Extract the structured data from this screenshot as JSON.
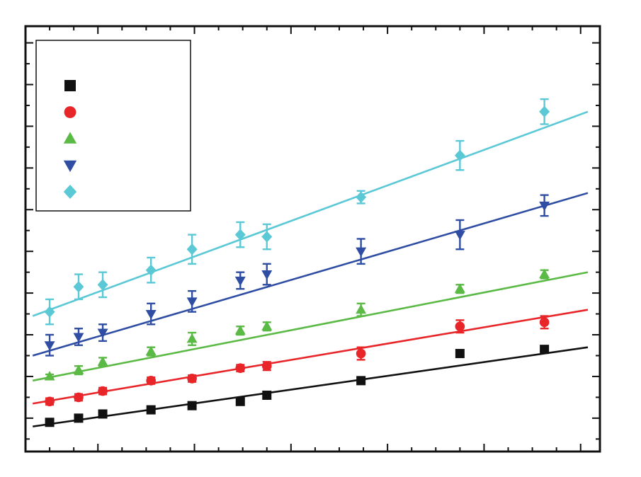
{
  "chart_data": {
    "type": "scatter",
    "title": "",
    "xlabel": "",
    "ylabel": "",
    "xlim": [
      0.5,
      12.4
    ],
    "ylim": [
      0.2,
      10.4
    ],
    "grid": false,
    "legend": {
      "placement": "top-left",
      "entries_labeled": false
    },
    "x": [
      1.0,
      1.6,
      2.1,
      3.1,
      3.95,
      4.95,
      5.5,
      7.45,
      9.5,
      11.25
    ],
    "series": [
      {
        "color": "#111111",
        "marker": "square",
        "x": [
          1.0,
          1.6,
          2.1,
          3.1,
          3.95,
          4.95,
          5.5,
          7.45,
          9.5,
          11.25
        ],
        "y": [
          0.9,
          1.0,
          1.1,
          1.2,
          1.3,
          1.4,
          1.55,
          1.9,
          2.55,
          2.65
        ],
        "err": [
          0.05,
          0.05,
          0.05,
          0.05,
          0.05,
          0.05,
          0.05,
          0.05,
          0.05,
          0.05
        ],
        "fit": [
          [
            0.65,
            0.8
          ],
          [
            12.15,
            2.7
          ]
        ]
      },
      {
        "color": "#e8262a",
        "marker": "circle",
        "x": [
          1.0,
          1.6,
          2.1,
          3.1,
          3.95,
          4.95,
          5.5,
          7.45,
          9.5,
          11.25
        ],
        "y": [
          1.4,
          1.5,
          1.65,
          1.9,
          1.95,
          2.2,
          2.25,
          2.55,
          3.2,
          3.3
        ],
        "err": [
          0.08,
          0.08,
          0.08,
          0.08,
          0.08,
          0.08,
          0.1,
          0.15,
          0.15,
          0.15
        ],
        "fit": [
          [
            0.65,
            1.35
          ],
          [
            12.15,
            3.6
          ]
        ]
      },
      {
        "color": "#5bb945",
        "marker": "triangle-up",
        "x": [
          1.0,
          1.6,
          2.1,
          3.1,
          3.95,
          4.95,
          5.5,
          7.45,
          9.5,
          11.25
        ],
        "y": [
          2.0,
          2.15,
          2.35,
          2.6,
          2.9,
          3.1,
          3.2,
          3.6,
          4.1,
          4.45
        ],
        "err": [
          0.05,
          0.1,
          0.1,
          0.1,
          0.15,
          0.1,
          0.1,
          0.15,
          0.1,
          0.1
        ],
        "fit": [
          [
            0.65,
            1.9
          ],
          [
            12.15,
            4.5
          ]
        ]
      },
      {
        "color": "#2e4da3",
        "marker": "triangle-down",
        "x": [
          1.0,
          1.6,
          2.1,
          3.1,
          3.95,
          4.95,
          5.5,
          7.45,
          9.5,
          11.25
        ],
        "y": [
          2.75,
          2.95,
          3.05,
          3.5,
          3.8,
          4.3,
          4.45,
          5.0,
          5.4,
          6.1
        ],
        "err": [
          0.25,
          0.2,
          0.2,
          0.25,
          0.25,
          0.2,
          0.25,
          0.3,
          0.35,
          0.25
        ],
        "fit": [
          [
            0.65,
            2.5
          ],
          [
            12.15,
            6.4
          ]
        ]
      },
      {
        "color": "#5bc8d6",
        "marker": "diamond",
        "x": [
          1.0,
          1.6,
          2.1,
          3.1,
          3.95,
          4.95,
          5.5,
          7.45,
          9.5,
          11.25
        ],
        "y": [
          3.55,
          4.15,
          4.2,
          4.55,
          5.05,
          5.4,
          5.35,
          6.3,
          7.3,
          8.35
        ],
        "err": [
          0.3,
          0.3,
          0.3,
          0.3,
          0.35,
          0.3,
          0.3,
          0.15,
          0.35,
          0.3
        ],
        "fit": [
          [
            0.65,
            3.45
          ],
          [
            12.15,
            8.35
          ]
        ]
      }
    ]
  }
}
